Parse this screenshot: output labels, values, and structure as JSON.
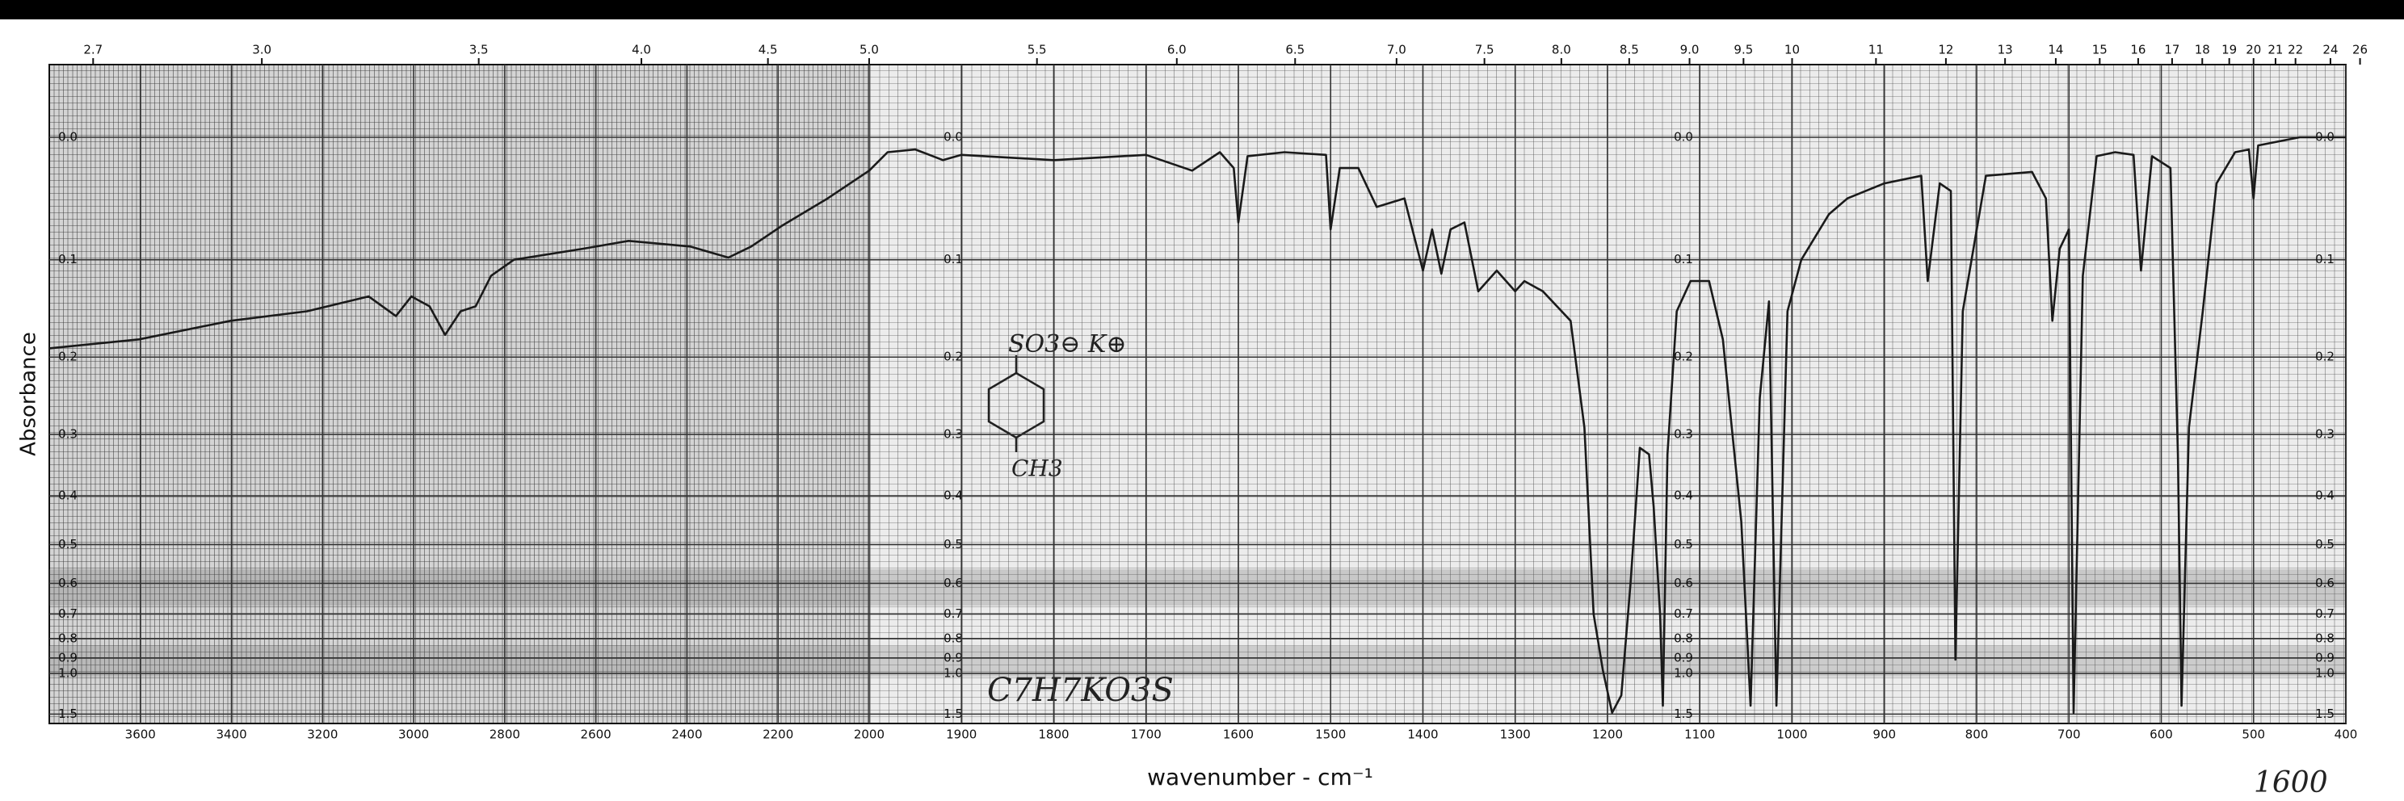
{
  "chart_data": {
    "type": "line",
    "x_label": "wavenumber - cm⁻¹",
    "y_label": "Absorbance",
    "annotations": [
      "SO3⊖ K⊕",
      "CH3",
      "C7H7KO3S",
      "1600"
    ],
    "x": [
      3800,
      3603,
      3402,
      3234,
      3099,
      3039,
      3005,
      2965,
      2931,
      2897,
      2864,
      2830,
      2780,
      2629,
      2528,
      2393,
      2309,
      2259,
      2192,
      2091,
      2000,
      1980,
      1950,
      1920,
      1900,
      1800,
      1700,
      1650,
      1620,
      1605,
      1600,
      1590,
      1550,
      1505,
      1500,
      1490,
      1470,
      1450,
      1420,
      1400,
      1390,
      1380,
      1370,
      1355,
      1340,
      1320,
      1300,
      1290,
      1270,
      1240,
      1225,
      1215,
      1205,
      1195,
      1185,
      1175,
      1165,
      1155,
      1150,
      1143,
      1140,
      1135,
      1125,
      1110,
      1090,
      1075,
      1055,
      1045,
      1035,
      1025,
      1017,
      1005,
      990,
      960,
      940,
      900,
      860,
      853,
      840,
      828,
      823,
      815,
      790,
      740,
      725,
      718,
      710,
      700,
      695,
      685,
      670,
      650,
      630,
      622,
      610,
      590,
      582,
      578,
      570,
      555,
      540,
      520,
      505,
      500,
      495,
      450,
      400
    ],
    "values": [
      0.19,
      0.18,
      0.16,
      0.15,
      0.135,
      0.155,
      0.135,
      0.145,
      0.175,
      0.15,
      0.145,
      0.115,
      0.1,
      0.09,
      0.083,
      0.088,
      0.098,
      0.088,
      0.07,
      0.047,
      0.025,
      0.011,
      0.009,
      0.017,
      0.013,
      0.017,
      0.013,
      0.025,
      0.011,
      0.023,
      0.067,
      0.014,
      0.011,
      0.013,
      0.073,
      0.023,
      0.023,
      0.054,
      0.047,
      0.11,
      0.073,
      0.113,
      0.073,
      0.067,
      0.13,
      0.11,
      0.13,
      0.12,
      0.13,
      0.16,
      0.29,
      0.7,
      0.98,
      1.47,
      1.2,
      0.6,
      0.32,
      0.33,
      0.42,
      0.7,
      1.34,
      0.33,
      0.15,
      0.12,
      0.12,
      0.18,
      0.45,
      1.34,
      0.25,
      0.14,
      1.34,
      0.15,
      0.1,
      0.06,
      0.047,
      0.035,
      0.029,
      0.12,
      0.035,
      0.041,
      0.91,
      0.15,
      0.029,
      0.026,
      0.047,
      0.16,
      0.09,
      0.073,
      1.47,
      0.115,
      0.014,
      0.011,
      0.013,
      0.11,
      0.014,
      0.023,
      0.33,
      1.34,
      0.29,
      0.15,
      0.035,
      0.011,
      0.009,
      0.047,
      0.006,
      0,
      0
    ],
    "color": "#1a1a1a",
    "xlim": [
      3800,
      400
    ],
    "x_break": 2000,
    "xticks": [
      3600,
      3400,
      3200,
      3000,
      2800,
      2600,
      2400,
      2200,
      2000,
      1900,
      1800,
      1700,
      1600,
      1500,
      1400,
      1300,
      1200,
      1100,
      1000,
      900,
      800,
      700,
      600,
      500,
      400
    ],
    "x2_scale": "reciprocal",
    "x2ticks": [
      2.7,
      {
        "value": 3,
        "label": "3.0"
      },
      3.5,
      {
        "value": 4,
        "label": "4.0"
      },
      4.5,
      {
        "value": 5,
        "label": "5.0"
      },
      5.5,
      {
        "value": 6,
        "label": "6.0"
      },
      6.5,
      {
        "value": 7,
        "label": "7.0"
      },
      7.5,
      {
        "value": 8,
        "label": "8.0"
      },
      8.5,
      {
        "value": 9,
        "label": "9.0"
      },
      9.5,
      10,
      11,
      12,
      13,
      14,
      15,
      16,
      17,
      18,
      19,
      20,
      21,
      22,
      24,
      26
    ],
    "ylim": [
      -0.05,
      1.8
    ],
    "y_scale": "absorbance",
    "yticks": [
      {
        "value": 0,
        "label": "0.0"
      },
      0.1,
      0.2,
      0.3,
      0.4,
      0.5,
      0.6,
      0.7,
      0.8,
      0.9,
      {
        "value": 1,
        "label": "1.0"
      },
      1.5
    ],
    "grid": true
  }
}
